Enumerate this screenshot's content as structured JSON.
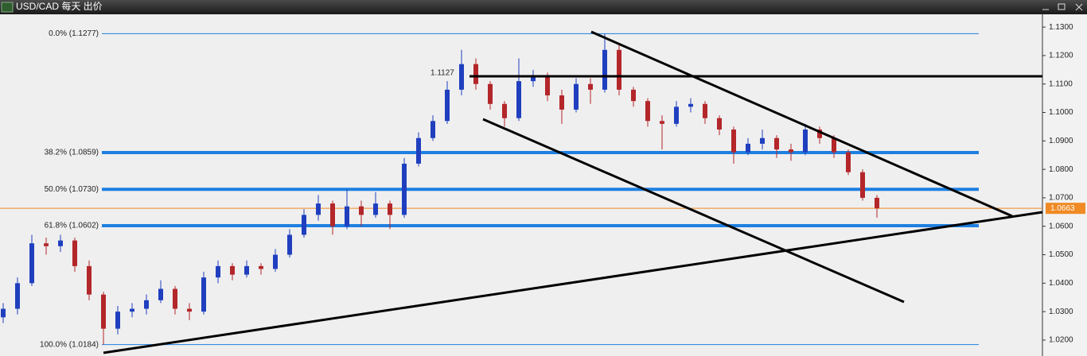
{
  "window": {
    "title": "USD/CAD 每天 出价"
  },
  "chart_data": {
    "type": "candlestick",
    "up_color": "#1f3fbf",
    "down_color": "#b3262a",
    "open": [
      1.028,
      1.031,
      1.04,
      1.054,
      1.053,
      1.055,
      1.046,
      1.036,
      1.024,
      1.03,
      1.031,
      1.034,
      1.038,
      1.031,
      1.03,
      1.042,
      1.046,
      1.043,
      1.046,
      1.045,
      1.05,
      1.057,
      1.064,
      1.068,
      1.06,
      1.067,
      1.064,
      1.068,
      1.064,
      1.082,
      1.091,
      1.097,
      1.108,
      1.117,
      1.11,
      1.103,
      1.098,
      1.111,
      1.113,
      1.106,
      1.101,
      1.11,
      1.108,
      1.122,
      1.108,
      1.104,
      1.097,
      1.096,
      1.102,
      1.103,
      1.098,
      1.094,
      1.086,
      1.089,
      1.091,
      1.087,
      1.086,
      1.094,
      1.091,
      1.086,
      1.079,
      1.07
    ],
    "high": [
      1.033,
      1.042,
      1.057,
      1.056,
      1.057,
      1.056,
      1.048,
      1.037,
      1.032,
      1.033,
      1.036,
      1.041,
      1.039,
      1.033,
      1.044,
      1.048,
      1.047,
      1.048,
      1.047,
      1.052,
      1.059,
      1.066,
      1.071,
      1.069,
      1.073,
      1.069,
      1.072,
      1.069,
      1.084,
      1.093,
      1.099,
      1.111,
      1.122,
      1.119,
      1.111,
      1.104,
      1.119,
      1.115,
      1.114,
      1.108,
      1.112,
      1.112,
      1.1277,
      1.124,
      1.109,
      1.105,
      1.099,
      1.104,
      1.105,
      1.104,
      1.099,
      1.095,
      1.091,
      1.094,
      1.092,
      1.089,
      1.096,
      1.095,
      1.092,
      1.087,
      1.08,
      1.071
    ],
    "low": [
      1.026,
      1.029,
      1.039,
      1.05,
      1.051,
      1.044,
      1.034,
      1.0184,
      1.022,
      1.028,
      1.029,
      1.033,
      1.029,
      1.027,
      1.029,
      1.04,
      1.041,
      1.042,
      1.043,
      1.044,
      1.049,
      1.056,
      1.062,
      1.057,
      1.059,
      1.06,
      1.063,
      1.059,
      1.063,
      1.081,
      1.09,
      1.096,
      1.106,
      1.108,
      1.101,
      1.095,
      1.097,
      1.109,
      1.104,
      1.096,
      1.1,
      1.103,
      1.107,
      1.106,
      1.102,
      1.095,
      1.087,
      1.095,
      1.1,
      1.096,
      1.092,
      1.082,
      1.085,
      1.087,
      1.084,
      1.083,
      1.085,
      1.089,
      1.084,
      1.078,
      1.069,
      1.063
    ],
    "close": [
      1.031,
      1.04,
      1.054,
      1.053,
      1.055,
      1.046,
      1.036,
      1.024,
      1.03,
      1.031,
      1.034,
      1.038,
      1.031,
      1.03,
      1.042,
      1.046,
      1.043,
      1.046,
      1.045,
      1.05,
      1.057,
      1.064,
      1.068,
      1.06,
      1.067,
      1.064,
      1.068,
      1.064,
      1.082,
      1.091,
      1.097,
      1.108,
      1.117,
      1.11,
      1.103,
      1.098,
      1.111,
      1.113,
      1.106,
      1.101,
      1.11,
      1.108,
      1.122,
      1.108,
      1.104,
      1.097,
      1.096,
      1.102,
      1.103,
      1.098,
      1.094,
      1.086,
      1.089,
      1.091,
      1.087,
      1.086,
      1.094,
      1.091,
      1.086,
      1.079,
      1.07,
      1.0663
    ],
    "ylim": [
      1.0144,
      1.1345
    ],
    "yticks": [
      {
        "value": 1.02,
        "label": "1.0200"
      },
      {
        "value": 1.03,
        "label": "1.0300"
      },
      {
        "value": 1.04,
        "label": "1.0400"
      },
      {
        "value": 1.05,
        "label": "1.0500"
      },
      {
        "value": 1.06,
        "label": "1.0600"
      },
      {
        "value": 1.07,
        "label": "1.0700"
      },
      {
        "value": 1.08,
        "label": "1.0800"
      },
      {
        "value": 1.09,
        "label": "1.0900"
      },
      {
        "value": 1.1,
        "label": "1.1000"
      },
      {
        "value": 1.11,
        "label": "1.1100"
      },
      {
        "value": 1.12,
        "label": "1.1200"
      },
      {
        "value": 1.13,
        "label": "1.1300"
      }
    ],
    "fib_color": "#1e7fe0",
    "fib_levels": [
      {
        "value": 1.1277,
        "label": "0.0% (1.1277)"
      },
      {
        "value": 1.0859,
        "label": "38.2% (1.0859)"
      },
      {
        "value": 1.073,
        "label": "50.0% (1.0730)"
      },
      {
        "value": 1.0602,
        "label": "61.8% (1.0602)"
      },
      {
        "value": 1.0184,
        "label": "100.0% (1.0184)"
      }
    ],
    "current_price": {
      "value": 1.0663,
      "label": "1.0663"
    },
    "current_color": "#f08a24",
    "annotation": {
      "value": 1.1127,
      "label": "1.1127"
    }
  }
}
